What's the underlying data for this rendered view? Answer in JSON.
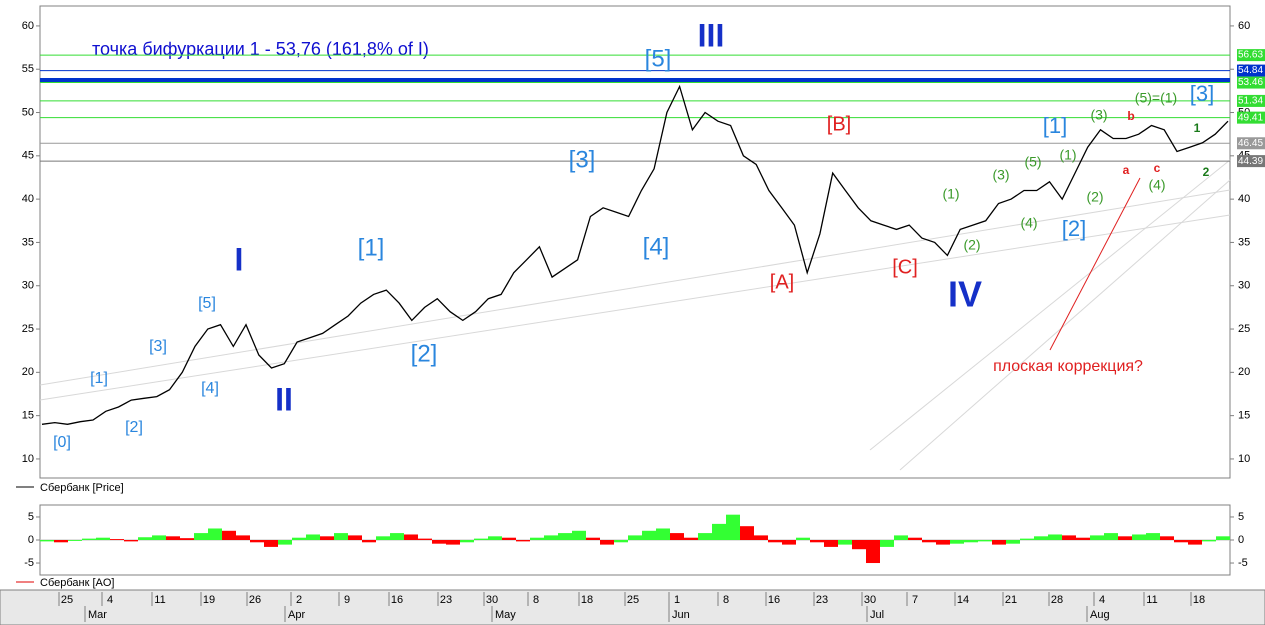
{
  "chart_data": [
    {
      "type": "line",
      "title": "точка бифуркации 1 - 53,76 (161,8% of I)",
      "legend": "Сбербанк [Price]",
      "color": "#000000",
      "values": [
        14,
        14.2,
        14,
        14.3,
        14.5,
        15.5,
        16,
        16.8,
        17,
        17.2,
        18,
        20,
        23,
        25,
        25.5,
        23,
        25.5,
        22,
        20.5,
        21,
        23.5,
        24,
        24.5,
        25.5,
        26.5,
        28,
        29,
        29.5,
        28,
        26,
        27.5,
        28.5,
        27,
        26,
        27,
        28.5,
        29,
        31.5,
        33,
        34.5,
        31,
        32,
        33,
        38,
        39,
        38.5,
        38,
        41,
        43.5,
        50,
        53,
        48,
        50,
        49,
        48.5,
        45,
        44,
        41,
        39,
        37,
        31.5,
        36,
        43,
        41,
        39,
        37.5,
        37,
        36.5,
        37,
        35.5,
        35,
        33.5,
        36.5,
        37,
        37.5,
        39.5,
        40,
        41,
        41,
        42,
        40,
        43,
        46,
        48,
        47,
        47,
        47.5,
        48.5,
        48,
        45.5,
        46,
        46.5,
        47.5,
        49
      ],
      "ylim": [
        7.8,
        62.3
      ],
      "yticks": [
        10,
        15,
        20,
        25,
        30,
        35,
        40,
        45,
        50,
        55,
        60
      ],
      "bifurcation_level": 53.76,
      "bifurcation_color": "#0033cc",
      "levels": [
        56.63,
        54.84,
        53.46,
        51.34,
        49.41,
        46.45,
        44.39
      ],
      "level_colors": [
        "#33dd33",
        "#0033cc",
        "#33dd33",
        "#33dd33",
        "#33dd33",
        "#999999",
        "#777777"
      ],
      "annotations": [
        {
          "text": "[0]",
          "color": "#2a86de"
        },
        {
          "text": "[1]",
          "color": "#2a86de"
        },
        {
          "text": "[2]",
          "color": "#2a86de"
        },
        {
          "text": "[3]",
          "color": "#2a86de"
        },
        {
          "text": "[4]",
          "color": "#2a86de"
        },
        {
          "text": "[5]",
          "color": "#2a86de"
        },
        {
          "text": "I",
          "color": "#1530c8"
        },
        {
          "text": "II",
          "color": "#1530c8"
        },
        {
          "text": "[1]",
          "color": "#2a86de"
        },
        {
          "text": "[2]",
          "color": "#2a86de"
        },
        {
          "text": "[3]",
          "color": "#2a86de"
        },
        {
          "text": "[4]",
          "color": "#2a86de"
        },
        {
          "text": "[5]",
          "color": "#2a86de"
        },
        {
          "text": "III",
          "color": "#1530c8"
        },
        {
          "text": "[A]",
          "color": "#e02020"
        },
        {
          "text": "[B]",
          "color": "#e02020"
        },
        {
          "text": "[C]",
          "color": "#e02020"
        },
        {
          "text": "IV",
          "color": "#1530c8"
        },
        {
          "text": "(1)",
          "color": "#3a9a2a"
        },
        {
          "text": "(2)",
          "color": "#3a9a2a"
        },
        {
          "text": "(3)",
          "color": "#3a9a2a"
        },
        {
          "text": "(4)",
          "color": "#3a9a2a"
        },
        {
          "text": "(5)",
          "color": "#3a9a2a"
        },
        {
          "text": "(1)",
          "color": "#3a9a2a"
        },
        {
          "text": "(2)",
          "color": "#3a9a2a"
        },
        {
          "text": "(3)",
          "color": "#3a9a2a"
        },
        {
          "text": "[1]",
          "color": "#2a86de"
        },
        {
          "text": "[2]",
          "color": "#2a86de"
        },
        {
          "text": "(5)=(1)",
          "color": "#3a9a2a"
        },
        {
          "text": "[3]",
          "color": "#2a86de"
        },
        {
          "text": "b",
          "color": "#e02020"
        },
        {
          "text": "a",
          "color": "#e02020"
        },
        {
          "text": "c",
          "color": "#e02020"
        },
        {
          "text": "(4)",
          "color": "#3a9a2a"
        },
        {
          "text": "1",
          "color": "#1a7a1a"
        },
        {
          "text": "2",
          "color": "#1a7a1a"
        },
        {
          "text": "плоская коррекция?",
          "color": "#e02020"
        }
      ]
    },
    {
      "type": "bar",
      "legend": "Сбербанк [AO]",
      "up_color": "#33ff33",
      "down_color": "#ff0000",
      "values": [
        -0.3,
        -0.5,
        -0.2,
        0.3,
        0.5,
        0.2,
        -0.3,
        0.6,
        1.0,
        0.8,
        0.4,
        1.5,
        2.5,
        2.0,
        1.0,
        -0.5,
        -1.5,
        -1.0,
        0.5,
        1.2,
        0.8,
        1.5,
        1.0,
        -0.5,
        0.8,
        1.5,
        1.2,
        0.3,
        -0.8,
        -1.0,
        -0.5,
        0.3,
        0.8,
        0.5,
        -0.3,
        0.5,
        1.0,
        1.5,
        2.0,
        0.5,
        -1.0,
        -0.5,
        1.0,
        2.0,
        2.5,
        1.5,
        0.5,
        1.5,
        3.5,
        5.5,
        3.0,
        1.0,
        -0.5,
        -1.0,
        0.5,
        -0.5,
        -1.5,
        -1.0,
        -2.0,
        -5.0,
        -1.5,
        1.0,
        0.5,
        -0.5,
        -1.0,
        -0.8,
        -0.5,
        -0.3,
        -1.0,
        -0.8,
        0.3,
        0.8,
        1.2,
        1.0,
        0.5,
        1.0,
        1.5,
        0.8,
        1.2,
        1.5,
        0.8,
        -0.5,
        -1.0,
        -0.3,
        0.8
      ],
      "ylim": [
        -7.6,
        7.6
      ],
      "yticks": [
        -5,
        0,
        5
      ]
    }
  ],
  "date_axis": {
    "days": [
      "25",
      "4",
      "11",
      "19",
      "26",
      "2",
      "9",
      "16",
      "23",
      "30",
      "8",
      "18",
      "25",
      "1",
      "8",
      "16",
      "23",
      "30",
      "7",
      "14",
      "21",
      "28",
      "4",
      "11",
      "18"
    ],
    "months": [
      "Mar",
      "Apr",
      "May",
      "Jun",
      "Jul",
      "Aug"
    ]
  }
}
